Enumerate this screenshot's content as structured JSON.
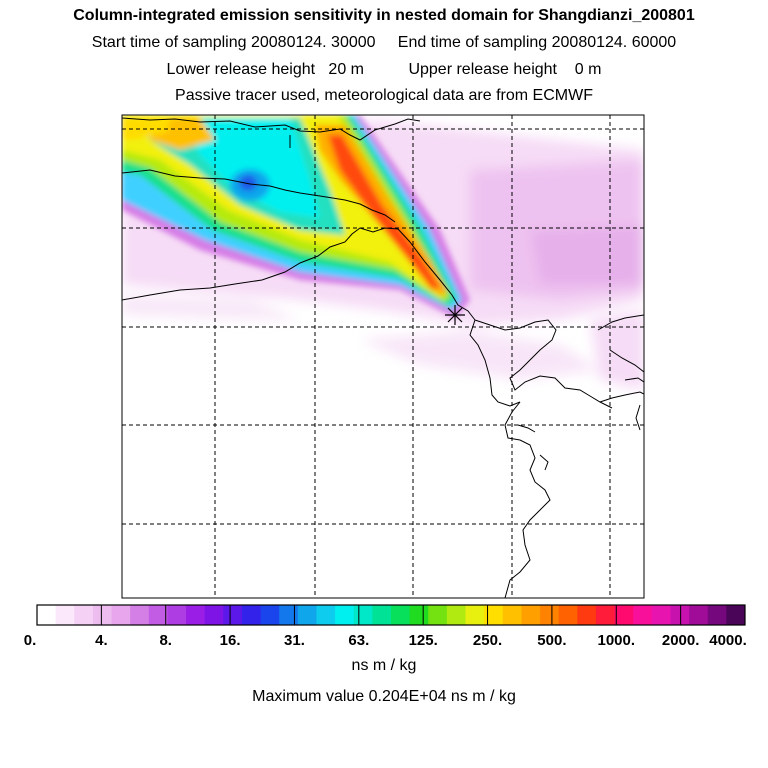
{
  "header": {
    "title": "Column-integrated emission sensitivity in nested domain for Shangdianzi_200801",
    "sampling_line": "Start time of sampling 20080124. 30000     End time of sampling 20080124. 60000",
    "release_line": "Lower release height   20 m          Upper release height    0 m",
    "tracer_line": "Passive tracer used, meteorological data are from ECMWF"
  },
  "colorbar": {
    "tick_labels": [
      "0.",
      "4.",
      "8.",
      "16.",
      "31.",
      "63.",
      "125.",
      "250.",
      "500.",
      "1000.",
      "2000.",
      "4000."
    ],
    "unit_label": "ns m / kg",
    "max_value_label": "Maximum value  0.204E+04 ns m / kg",
    "colors": [
      "#ffffff",
      "#fbe8fb",
      "#f5d2f5",
      "#eebdf0",
      "#e8a6ec",
      "#d47fe6",
      "#c35ce4",
      "#ae3de4",
      "#9a1ee6",
      "#7e14e6",
      "#5b18e8",
      "#3323ea",
      "#1a45ec",
      "#1278ec",
      "#10a6ec",
      "#0ecced",
      "#00f0f0",
      "#00e8c8",
      "#00e296",
      "#08df5a",
      "#20dc20",
      "#74e210",
      "#b0ea10",
      "#e8f010",
      "#ffde00",
      "#ffc000",
      "#ffa000",
      "#ff8200",
      "#ff6200",
      "#ff3a10",
      "#ff1c3a",
      "#ff0a6e",
      "#f8109a",
      "#e814b0",
      "#c812ae",
      "#a00c98",
      "#74087c",
      "#4a0458"
    ]
  }
}
